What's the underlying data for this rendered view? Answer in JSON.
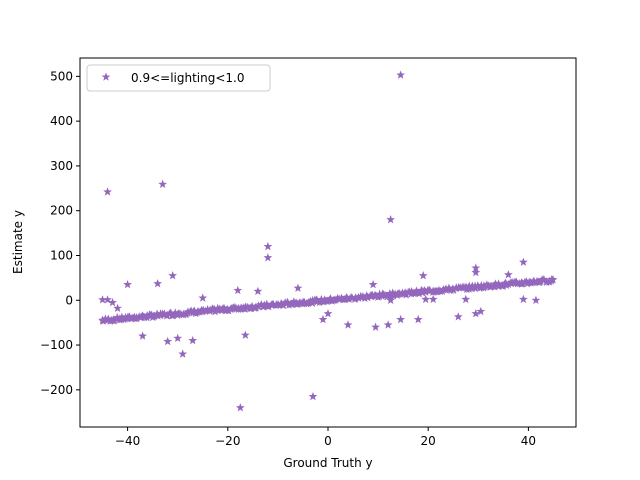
{
  "chart_data": {
    "type": "scatter",
    "title": "",
    "xlabel": "Ground Truth y",
    "ylabel": "Estimate y",
    "xlim": [
      -49.5,
      49.5
    ],
    "ylim": [
      -283,
      541
    ],
    "xticks": [
      -40,
      -20,
      0,
      20,
      40
    ],
    "yticks": [
      -200,
      -100,
      0,
      100,
      200,
      300,
      400,
      500
    ],
    "xtick_labels": [
      "−40",
      "−20",
      "0",
      "20",
      "40"
    ],
    "ytick_labels": [
      "−200",
      "−100",
      "0",
      "100",
      "200",
      "300",
      "400",
      "500"
    ],
    "grid": false,
    "legend_position": "top-left",
    "series": [
      {
        "name": "0.9<=lighting<1.0",
        "color": "#9467bd",
        "marker": "star",
        "trend": {
          "x_from": -45,
          "x_to": 45,
          "slope": 1.0,
          "intercept": 0
        },
        "outliers": [
          [
            14.5,
            503
          ],
          [
            -44,
            242
          ],
          [
            -33,
            259
          ],
          [
            12.5,
            180
          ],
          [
            -12,
            120
          ],
          [
            -12,
            95
          ],
          [
            -44,
            1
          ],
          [
            -45,
            1
          ],
          [
            -40,
            35
          ],
          [
            -43,
            -5
          ],
          [
            -42,
            -18
          ],
          [
            -37,
            -80
          ],
          [
            -34,
            37
          ],
          [
            -31,
            55
          ],
          [
            -32,
            -92
          ],
          [
            -30,
            -85
          ],
          [
            -29,
            -120
          ],
          [
            -27,
            -90
          ],
          [
            -25,
            5
          ],
          [
            -22,
            -18
          ],
          [
            -18,
            22
          ],
          [
            -16.5,
            -78
          ],
          [
            -17.5,
            -240
          ],
          [
            -14,
            20
          ],
          [
            -6,
            27
          ],
          [
            -3,
            -215
          ],
          [
            -1,
            -43
          ],
          [
            0,
            -30
          ],
          [
            4,
            -55
          ],
          [
            9,
            35
          ],
          [
            9.5,
            -60
          ],
          [
            12,
            -55
          ],
          [
            12.5,
            0
          ],
          [
            14.5,
            -43
          ],
          [
            18,
            -43
          ],
          [
            19,
            55
          ],
          [
            19.5,
            2
          ],
          [
            21,
            2
          ],
          [
            26,
            -37
          ],
          [
            27.5,
            2
          ],
          [
            29.5,
            -30
          ],
          [
            30.5,
            -25
          ],
          [
            29.5,
            72
          ],
          [
            29.5,
            62
          ],
          [
            36,
            57
          ],
          [
            39,
            85
          ],
          [
            39,
            2
          ],
          [
            41.5,
            0
          ]
        ]
      }
    ]
  }
}
